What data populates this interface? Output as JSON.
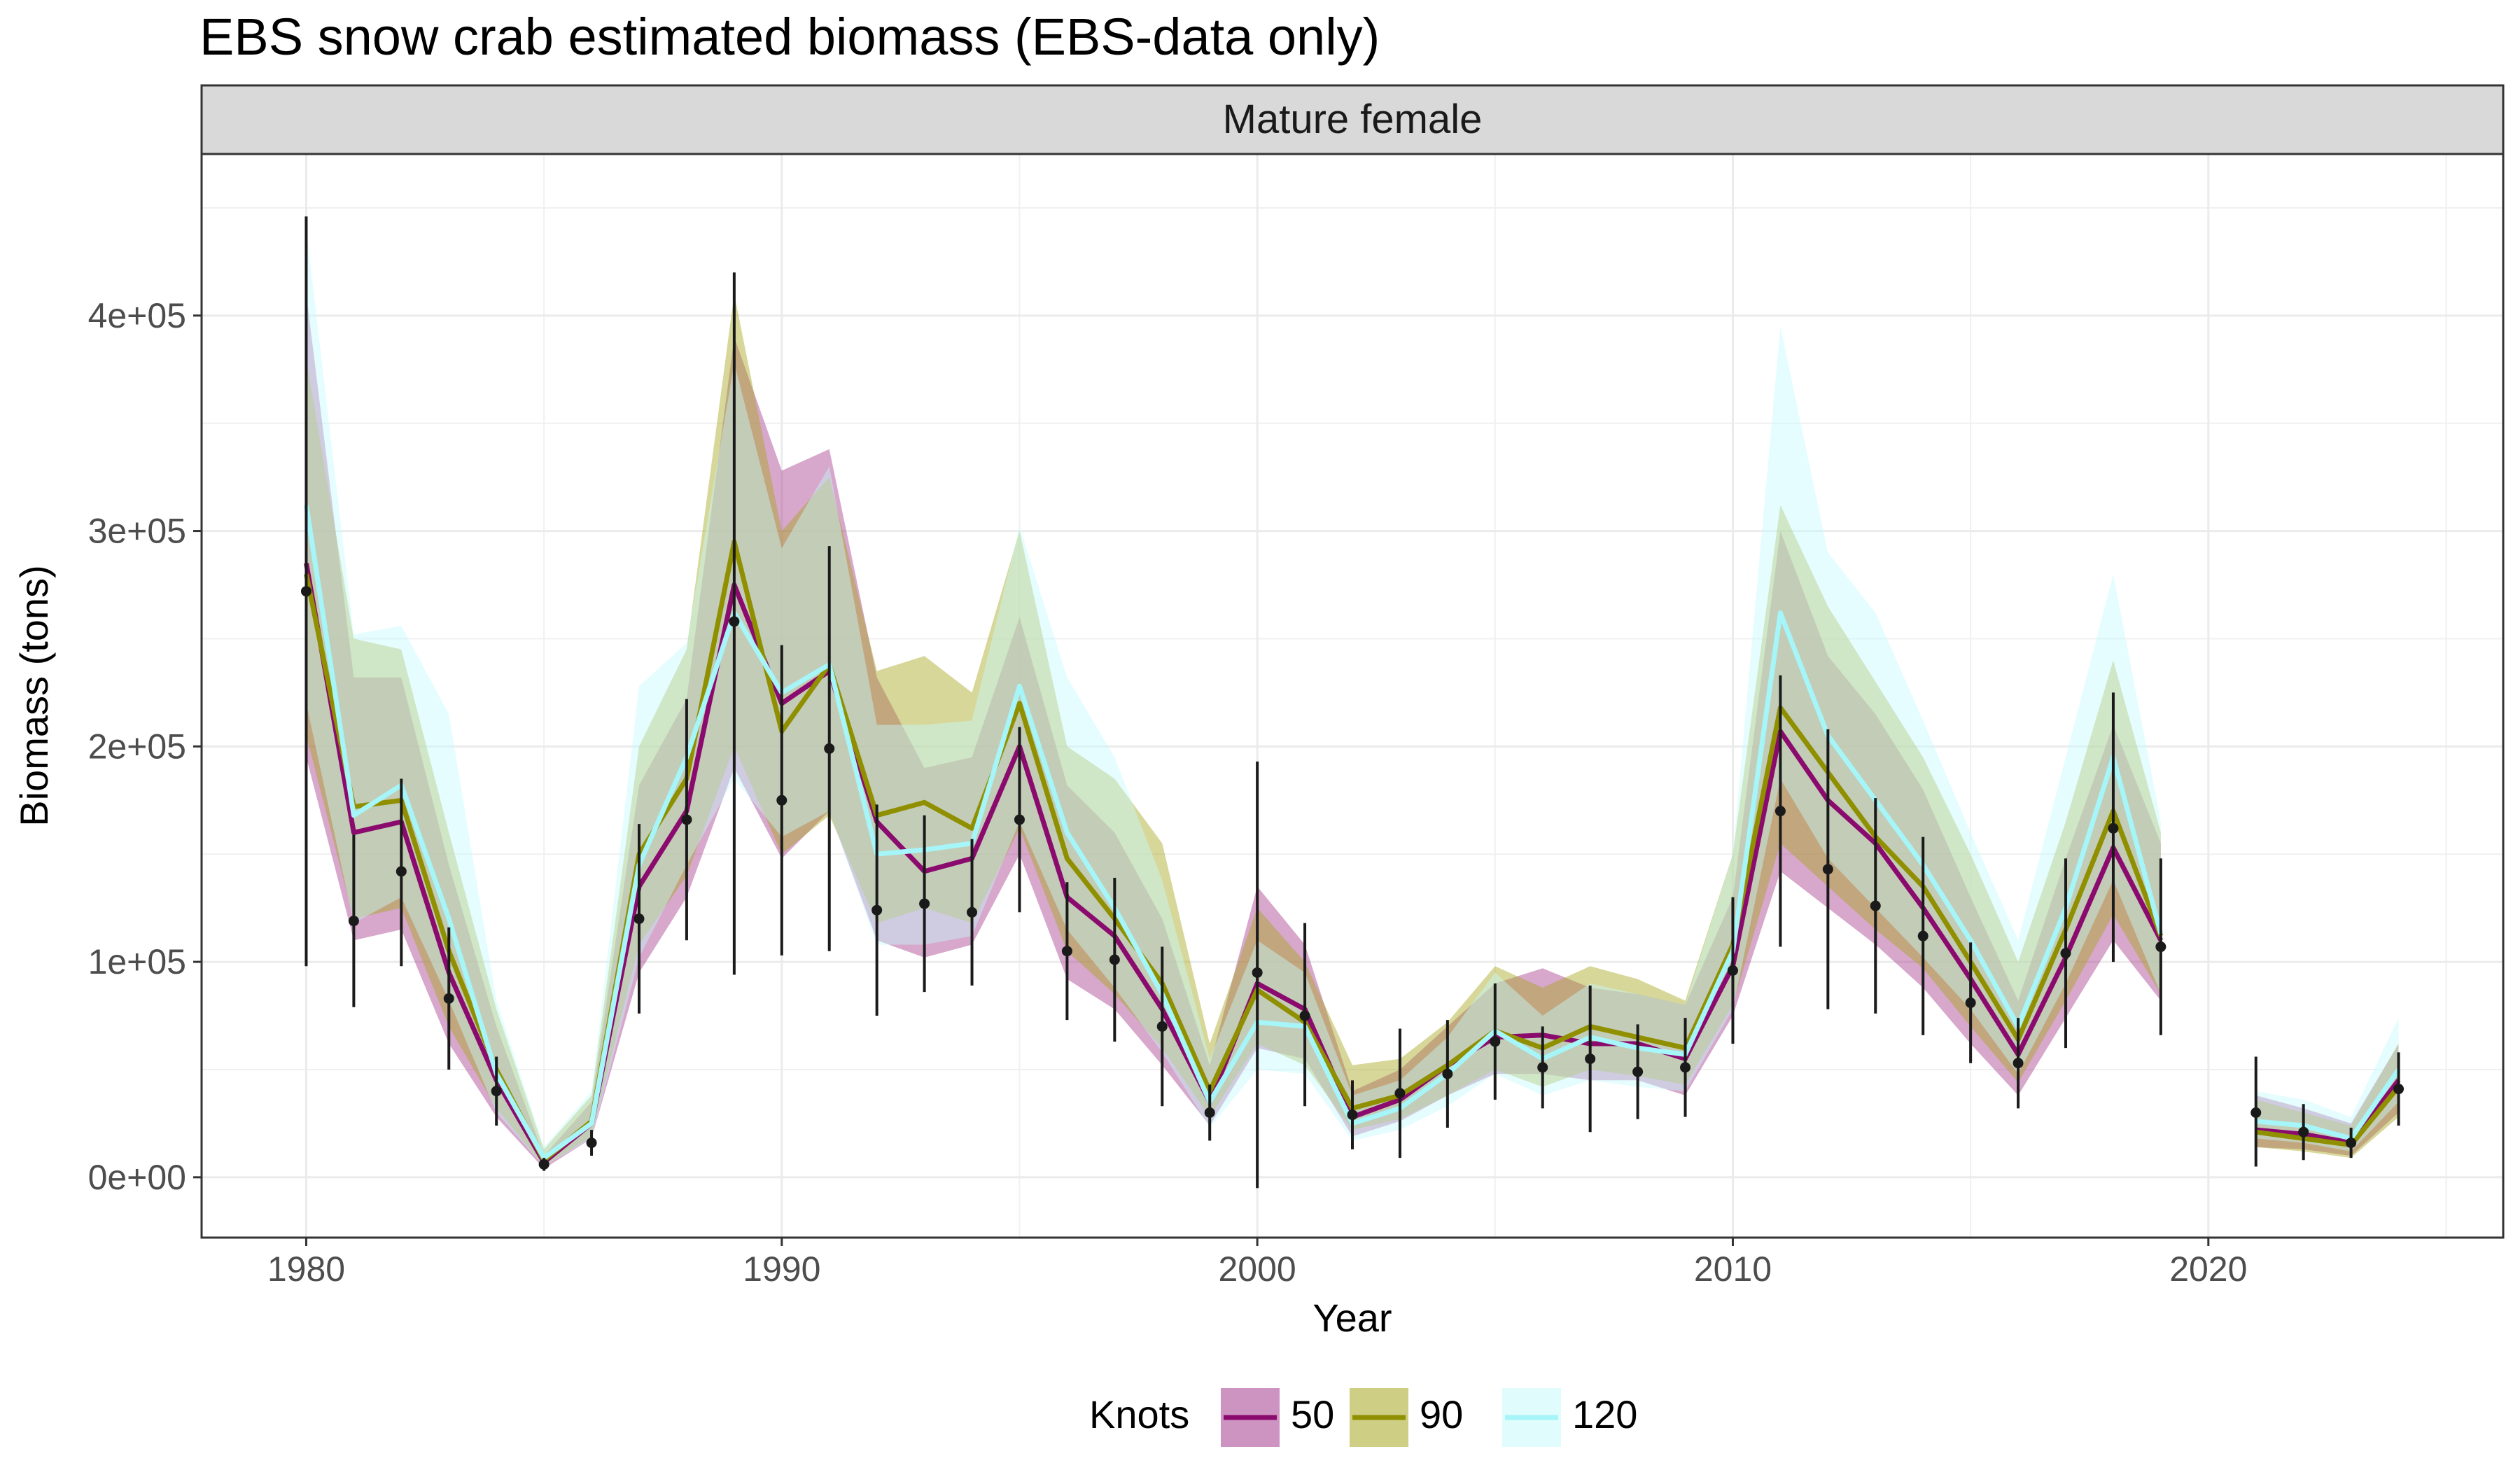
{
  "chart_data": {
    "type": "line",
    "title": "EBS snow crab estimated biomass (EBS-data only)",
    "facet": "Mature female",
    "xlabel": "Year",
    "ylabel": "Biomass (tons)",
    "xlim": [
      1977.8,
      2026.2
    ],
    "ylim": [
      -28000,
      475000
    ],
    "x_ticks": [
      1980,
      1990,
      2000,
      2010,
      2020
    ],
    "x_tick_labels": [
      "1980",
      "1990",
      "2000",
      "2010",
      "2020"
    ],
    "y_ticks": [
      0,
      100000,
      200000,
      300000,
      400000
    ],
    "y_tick_labels": [
      "0e+00",
      "1e+05",
      "2e+05",
      "3e+05",
      "4e+05"
    ],
    "grid": true,
    "legend": {
      "title": "Knots",
      "position": "bottom"
    },
    "series": [
      {
        "name": "50",
        "color": "#8B0A6E",
        "ribbon_color": "#A63C8E",
        "segments": [
          {
            "x": [
              1980,
              1981,
              1982,
              1983,
              1984,
              1985,
              1986,
              1987,
              1988,
              1989,
              1990,
              1991,
              1992,
              1993,
              1994,
              1995,
              1996,
              1997,
              1998,
              1999,
              2000,
              2001,
              2002,
              2003,
              2004,
              2005,
              2006,
              2007,
              2008,
              2009,
              2010,
              2011,
              2012,
              2013,
              2014,
              2015,
              2016,
              2017,
              2018,
              2019
            ],
            "y": [
              285000,
              160000,
              165000,
              95000,
              45000,
              7000,
              25000,
              135000,
              170000,
              275000,
              220000,
              235000,
              165000,
              142000,
              148000,
              200000,
              130000,
              112000,
              78000,
              35000,
              90000,
              78000,
              28000,
              36000,
              52000,
              65000,
              66000,
              62000,
              62000,
              55000,
              98000,
              207000,
              175000,
              155000,
              125000,
              92000,
              57000,
              102000,
              153000,
              110000
            ],
            "lower": [
              195000,
              110000,
              115000,
              62000,
              28000,
              4000,
              18000,
              95000,
              130000,
              190000,
              148000,
              170000,
              110000,
              102000,
              108000,
              150000,
              92000,
              78000,
              52000,
              24000,
              60000,
              55000,
              19000,
              26000,
              38000,
              48000,
              48000,
              45000,
              45000,
              38000,
              75000,
              142000,
              125000,
              108000,
              88000,
              62000,
              38000,
              74000,
              110000,
              82000
            ],
            "upper": [
              410000,
              232000,
              232000,
              145000,
              70000,
              10000,
              35000,
              182000,
              222000,
              390000,
              328000,
              338000,
              232000,
              190000,
              195000,
              260000,
              182000,
              160000,
              120000,
              52000,
              135000,
              108000,
              40000,
              50000,
              70000,
              90000,
              97000,
              88000,
              85000,
              80000,
              130000,
              300000,
              242000,
              215000,
              180000,
              130000,
              82000,
              148000,
              210000,
              155000
            ]
          },
          {
            "x": [
              2021,
              2022,
              2023,
              2024
            ],
            "y": [
              22000,
              20000,
              16000,
              45000
            ],
            "lower": [
              14000,
              13000,
              10000,
              30000
            ],
            "upper": [
              38000,
              32000,
              25000,
              62000
            ]
          }
        ]
      },
      {
        "name": "90",
        "color": "#8F8F00",
        "ribbon_color": "#A6A620",
        "segments": [
          {
            "x": [
              1980,
              1981,
              1982,
              1983,
              1984,
              1985,
              1986,
              1987,
              1988,
              1989,
              1990,
              1991,
              1992,
              1993,
              1994,
              1995,
              1996,
              1997,
              1998,
              1999,
              2000,
              2001,
              2002,
              2003,
              2004,
              2005,
              2006,
              2007,
              2008,
              2009,
              2010,
              2011,
              2012,
              2013,
              2014,
              2015,
              2016,
              2017,
              2018,
              2019
            ],
            "y": [
              280000,
              172000,
              175000,
              105000,
              50000,
              8000,
              26000,
              150000,
              185000,
              295000,
              207000,
              238000,
              168000,
              174000,
              162000,
              220000,
              148000,
              120000,
              90000,
              40000,
              87000,
              72000,
              32000,
              38000,
              52000,
              68000,
              60000,
              70000,
              65000,
              60000,
              108000,
              218000,
              188000,
              158000,
              135000,
              100000,
              64000,
              115000,
              170000,
              112000
            ],
            "lower": [
              205000,
              120000,
              125000,
              70000,
              32000,
              5000,
              19000,
              108000,
              140000,
              200000,
              150000,
              168000,
              118000,
              125000,
              118000,
              162000,
              105000,
              85000,
              60000,
              28000,
              62000,
              52000,
              22000,
              27000,
              38000,
              50000,
              42000,
              50000,
              47000,
              43000,
              80000,
              155000,
              135000,
              115000,
              97000,
              70000,
              44000,
              82000,
              122000,
              85000
            ],
            "upper": [
              380000,
              250000,
              245000,
              160000,
              78000,
              13000,
              38000,
              200000,
              245000,
              410000,
              300000,
              325000,
              235000,
              242000,
              225000,
              300000,
              200000,
              185000,
              155000,
              62000,
              125000,
              100000,
              52000,
              55000,
              72000,
              98000,
              88000,
              98000,
              92000,
              82000,
              150000,
              312000,
              265000,
              230000,
              195000,
              150000,
              100000,
              165000,
              240000,
              160000
            ]
          },
          {
            "x": [
              2021,
              2022,
              2023,
              2024
            ],
            "y": [
              21000,
              18000,
              15000,
              42000
            ],
            "lower": [
              14000,
              12000,
              9000,
              28000
            ],
            "upper": [
              36000,
              30000,
              24000,
              62000
            ]
          }
        ]
      },
      {
        "name": "120",
        "color": "#A6F5F8",
        "ribbon_color": "#C6FAFC",
        "segments": [
          {
            "x": [
              1980,
              1981,
              1982,
              1983,
              1984,
              1985,
              1986,
              1987,
              1988,
              1989,
              1990,
              1991,
              1992,
              1993,
              1994,
              1995,
              1996,
              1997,
              1998,
              1999,
              2000,
              2001,
              2002,
              2003,
              2004,
              2005,
              2006,
              2007,
              2008,
              2009,
              2010,
              2011,
              2012,
              2013,
              2014,
              2015,
              2016,
              2017,
              2018,
              2019
            ],
            "y": [
              312000,
              168000,
              182000,
              120000,
              48000,
              9000,
              25000,
              145000,
              195000,
              262000,
              225000,
              238000,
              150000,
              152000,
              155000,
              228000,
              160000,
              125000,
              85000,
              35000,
              72000,
              70000,
              25000,
              32000,
              48000,
              68000,
              55000,
              65000,
              60000,
              57000,
              105000,
              262000,
              205000,
              175000,
              145000,
              110000,
              70000,
              125000,
              195000,
              113000
            ],
            "lower": [
              220000,
              118000,
              130000,
              82000,
              30000,
              5000,
              18000,
              102000,
              145000,
              185000,
              158000,
              170000,
              108000,
              108000,
              112000,
              165000,
              115000,
              88000,
              58000,
              23000,
              50000,
              48000,
              17000,
              22000,
              33000,
              48000,
              38000,
              45000,
              42000,
              40000,
              78000,
              185000,
              148000,
              125000,
              102000,
              78000,
              48000,
              90000,
              138000,
              85000
            ],
            "upper": [
              440000,
              252000,
              256000,
              215000,
              82000,
              14000,
              40000,
              228000,
              248000,
              378000,
              292000,
              330000,
              210000,
              210000,
              212000,
              302000,
              232000,
              195000,
              138000,
              55000,
              110000,
              95000,
              38000,
              45000,
              65000,
              95000,
              75000,
              90000,
              85000,
              80000,
              150000,
              395000,
              290000,
              262000,
              212000,
              160000,
              110000,
              195000,
              280000,
              165000
            ]
          },
          {
            "x": [
              2021,
              2022,
              2023,
              2024
            ],
            "y": [
              26000,
              24000,
              18000,
              50000
            ],
            "lower": [
              18000,
              16000,
              12000,
              35000
            ],
            "upper": [
              40000,
              36000,
              28000,
              74000
            ]
          }
        ]
      }
    ],
    "observed": {
      "x": [
        1980,
        1981,
        1982,
        1983,
        1984,
        1985,
        1986,
        1987,
        1988,
        1989,
        1990,
        1991,
        1992,
        1993,
        1994,
        1995,
        1996,
        1997,
        1998,
        1999,
        2000,
        2001,
        2002,
        2003,
        2004,
        2005,
        2006,
        2007,
        2008,
        2009,
        2010,
        2011,
        2012,
        2013,
        2014,
        2015,
        2016,
        2017,
        2018,
        2019,
        2021,
        2022,
        2023,
        2024
      ],
      "y": [
        272000,
        119000,
        142000,
        83000,
        40000,
        6000,
        16000,
        120000,
        166000,
        258000,
        175000,
        199000,
        124000,
        127000,
        123000,
        166000,
        105000,
        101000,
        70000,
        30000,
        95000,
        75000,
        29000,
        39000,
        48000,
        63000,
        51000,
        55000,
        49000,
        51000,
        96000,
        170000,
        143000,
        126000,
        112000,
        81000,
        53000,
        104000,
        162000,
        107000,
        30000,
        21000,
        16000,
        41000
      ],
      "lower": [
        98000,
        79000,
        98000,
        50000,
        24000,
        3000,
        10000,
        76000,
        110000,
        94000,
        103000,
        105000,
        75000,
        86000,
        89000,
        123000,
        73000,
        63000,
        33000,
        17000,
        -5000,
        33000,
        13000,
        9000,
        23000,
        36000,
        32000,
        21000,
        27000,
        28000,
        62000,
        107000,
        78000,
        76000,
        66000,
        53000,
        32000,
        60000,
        100000,
        66000,
        5000,
        8000,
        9000,
        24000
      ],
      "upper": [
        446000,
        159000,
        185000,
        116000,
        56000,
        9000,
        22000,
        164000,
        222000,
        420000,
        247000,
        293000,
        173000,
        168000,
        157000,
        209000,
        137000,
        139000,
        107000,
        43000,
        193000,
        118000,
        45000,
        69000,
        73000,
        90000,
        70000,
        89000,
        71000,
        74000,
        130000,
        233000,
        208000,
        176000,
        158000,
        109000,
        74000,
        148000,
        225000,
        148000,
        56000,
        34000,
        23000,
        58000
      ]
    }
  }
}
